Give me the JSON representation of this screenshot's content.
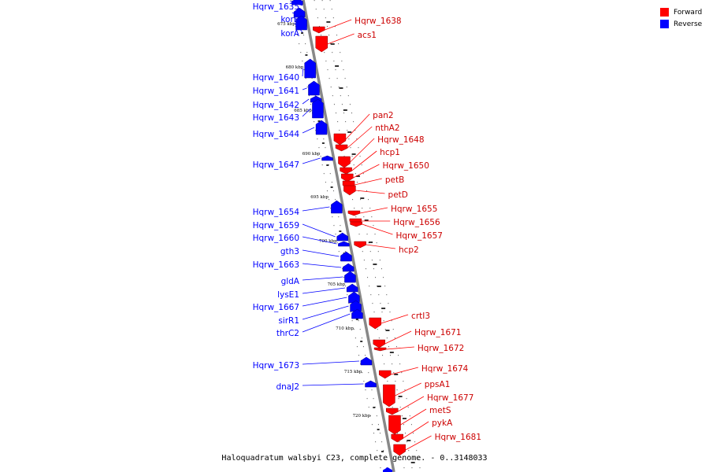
{
  "caption": "Haloquadratum walsbyi C23, complete genome. - 0..3148033",
  "legend": {
    "forward": {
      "label": "Forward",
      "color": "#ff0000"
    },
    "reverse": {
      "label": "Reverse",
      "color": "#0000ff"
    }
  },
  "colors": {
    "forward": "#ff0000",
    "reverse": "#0000ff",
    "backbone": "#888888"
  },
  "tick_labels": [
    "675 kbp",
    "680 kbp",
    "685 kbp",
    "690 kbp",
    "695 kbp",
    "700 kbp",
    "705 kbp",
    "710 kbp",
    "715 kbp",
    "720 kbp"
  ],
  "reverse_genes": [
    "Hqrw_1635",
    "korB",
    "korA",
    "Hqrw_1640",
    "Hqrw_1641",
    "Hqrw_1642",
    "Hqrw_1643",
    "Hqrw_1644",
    "Hqrw_1647",
    "Hqrw_1654",
    "Hqrw_1659",
    "Hqrw_1660",
    "gth3",
    "Hqrw_1663",
    "gldA",
    "lysE1",
    "Hqrw_1667",
    "sirR1",
    "thrC2",
    "Hqrw_1673",
    "dnaJ2"
  ],
  "forward_genes": [
    "Hqrw_1638",
    "acs1",
    "pan2",
    "nthA2",
    "Hqrw_1648",
    "hcp1",
    "Hqrw_1650",
    "petB",
    "petD",
    "Hqrw_1655",
    "Hqrw_1656",
    "Hqrw_1657",
    "hcp2",
    "crtI3",
    "Hqrw_1671",
    "Hqrw_1672",
    "Hqrw_1674",
    "ppsA1",
    "Hqrw_1677",
    "metS",
    "pykA",
    "Hqrw_1681"
  ]
}
